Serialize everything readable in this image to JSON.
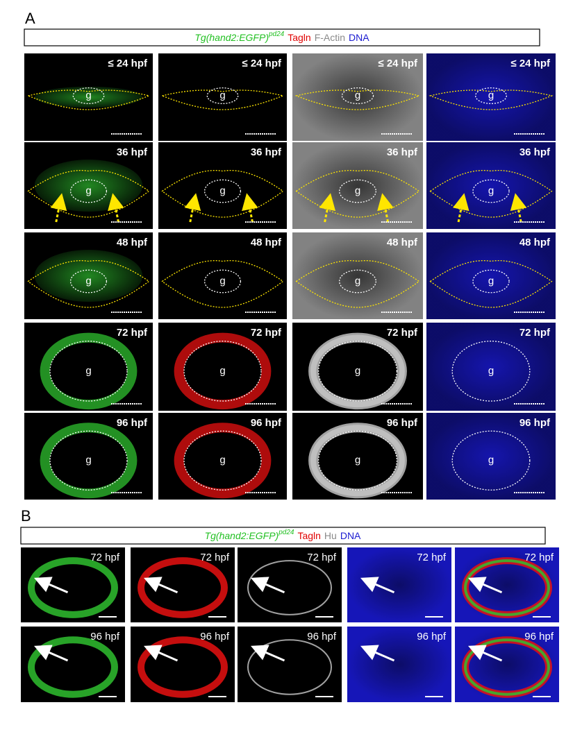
{
  "panel_a": {
    "label": "A",
    "legend": {
      "reporter": "Tg(hand2:EGFP)",
      "allele": "pd24",
      "reporter_color": "#22c022",
      "markers": [
        {
          "text": "Tagln",
          "color": "#e00000"
        },
        {
          "text": "F-Actin",
          "color": "#8a8a8a"
        },
        {
          "text": "DNA",
          "color": "#1a1ad0"
        }
      ]
    },
    "rows": [
      "≤ 24 hpf",
      "36 hpf",
      "48 hpf",
      "72 hpf",
      "96 hpf"
    ],
    "gut_label": "g"
  },
  "panel_b": {
    "label": "B",
    "legend": {
      "reporter": "Tg(hand2:EGFP)",
      "allele": "pd24",
      "reporter_color": "#22c022",
      "markers": [
        {
          "text": "Tagln",
          "color": "#e00000"
        },
        {
          "text": "Hu",
          "color": "#8a8a8a"
        },
        {
          "text": "DNA",
          "color": "#1a1ad0"
        }
      ]
    },
    "rows": [
      "72 hpf",
      "96 hpf"
    ]
  }
}
